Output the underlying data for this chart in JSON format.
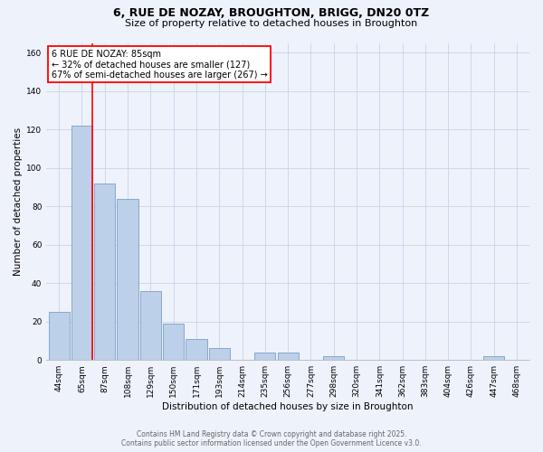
{
  "title1": "6, RUE DE NOZAY, BROUGHTON, BRIGG, DN20 0TZ",
  "title2": "Size of property relative to detached houses in Broughton",
  "xlabel": "Distribution of detached houses by size in Broughton",
  "ylabel": "Number of detached properties",
  "bins": [
    "44sqm",
    "65sqm",
    "87sqm",
    "108sqm",
    "129sqm",
    "150sqm",
    "171sqm",
    "193sqm",
    "214sqm",
    "235sqm",
    "256sqm",
    "277sqm",
    "298sqm",
    "320sqm",
    "341sqm",
    "362sqm",
    "383sqm",
    "404sqm",
    "426sqm",
    "447sqm",
    "468sqm"
  ],
  "values": [
    25,
    122,
    92,
    84,
    36,
    19,
    11,
    6,
    0,
    4,
    4,
    0,
    2,
    0,
    0,
    0,
    0,
    0,
    0,
    2,
    0
  ],
  "bar_color": "#bdd0e9",
  "bar_edge_color": "#7a9fc8",
  "vline_x_index": 1,
  "vline_color": "red",
  "annotation_text": "6 RUE DE NOZAY: 85sqm\n← 32% of detached houses are smaller (127)\n67% of semi-detached houses are larger (267) →",
  "annotation_box_color": "white",
  "annotation_box_edge": "red",
  "ylim": [
    0,
    165
  ],
  "yticks": [
    0,
    20,
    40,
    60,
    80,
    100,
    120,
    140,
    160
  ],
  "footer1": "Contains HM Land Registry data © Crown copyright and database right 2025.",
  "footer2": "Contains public sector information licensed under the Open Government Licence v3.0.",
  "bg_color": "#eef2fb",
  "grid_color": "#c8d4e8",
  "title_fontsize": 9,
  "subtitle_fontsize": 8,
  "axis_fontsize": 7.5,
  "tick_fontsize": 6.5,
  "footer_fontsize": 5.5,
  "annotation_fontsize": 7
}
